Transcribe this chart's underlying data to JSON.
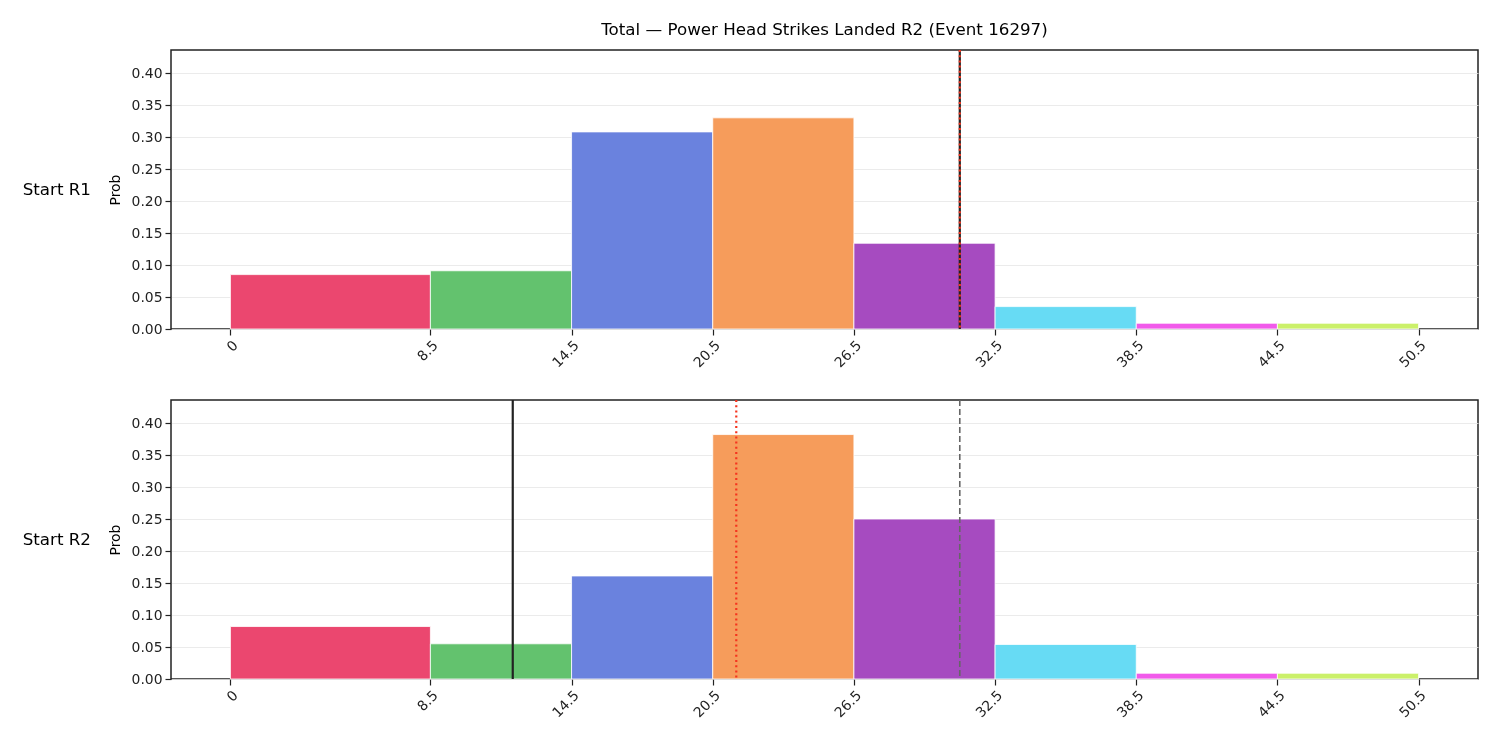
{
  "chart_data": [
    {
      "type": "histogram",
      "title": "Total — Power Head Strikes Landed R2 (Event 16297)",
      "ylabel": "Prob",
      "annotations": [
        "Start R1"
      ],
      "bins": [
        0,
        8.5,
        14.5,
        20.5,
        26.5,
        32.5,
        38.5,
        44.5,
        50.5
      ],
      "values": [
        0.085,
        0.091,
        0.308,
        0.33,
        0.134,
        0.035,
        0.009,
        0.009
      ],
      "colors": [
        "#eb476f",
        "#63c26e",
        "#6a82de",
        "#f69c5b",
        "#a64bc0",
        "#67dbf4",
        "#f15aea",
        "#cbf06a"
      ],
      "xlim": [
        -2.525,
        53.025
      ],
      "xticks": [
        0,
        8.5,
        14.5,
        20.5,
        26.5,
        32.5,
        38.5,
        44.5,
        50.5
      ],
      "ylim": [
        0,
        0.436
      ],
      "yticks": [
        {
          "value": 0,
          "label": "0.00"
        },
        0.05,
        {
          "value": 0.1,
          "label": "0.10"
        },
        0.15,
        {
          "value": 0.2,
          "label": "0.20"
        },
        0.25,
        {
          "value": 0.3,
          "label": "0.30"
        },
        0.35,
        {
          "value": 0.4,
          "label": "0.40"
        }
      ],
      "grid": "y",
      "ref_lines": [
        {
          "axis": "x",
          "value": 31,
          "color": "#222222",
          "line_style": "solid"
        },
        {
          "axis": "x",
          "value": 31,
          "color": "#f5341f",
          "line_style": "dotted"
        }
      ]
    },
    {
      "type": "histogram",
      "ylabel": "Prob",
      "annotations": [
        "Start R2"
      ],
      "bins": [
        0,
        8.5,
        14.5,
        20.5,
        26.5,
        32.5,
        38.5,
        44.5,
        50.5
      ],
      "values": [
        0.082,
        0.055,
        0.161,
        0.382,
        0.25,
        0.054,
        0.009,
        0.009
      ],
      "colors": [
        "#eb476f",
        "#63c26e",
        "#6a82de",
        "#f69c5b",
        "#a64bc0",
        "#67dbf4",
        "#f15aea",
        "#cbf06a"
      ],
      "xlim": [
        -2.525,
        53.025
      ],
      "xticks": [
        0,
        8.5,
        14.5,
        20.5,
        26.5,
        32.5,
        38.5,
        44.5,
        50.5
      ],
      "ylim": [
        0,
        0.436
      ],
      "yticks": [
        {
          "value": 0,
          "label": "0.00"
        },
        0.05,
        {
          "value": 0.1,
          "label": "0.10"
        },
        0.15,
        {
          "value": 0.2,
          "label": "0.20"
        },
        0.25,
        {
          "value": 0.3,
          "label": "0.30"
        },
        0.35,
        {
          "value": 0.4,
          "label": "0.40"
        }
      ],
      "grid": "y",
      "ref_lines": [
        {
          "axis": "x",
          "value": 12,
          "color": "#222222",
          "line_style": "solid"
        },
        {
          "axis": "x",
          "value": 21.5,
          "color": "#f5341f",
          "line_style": "dotted"
        },
        {
          "axis": "x",
          "value": 31,
          "color": "#666666",
          "line_style": "dashed"
        }
      ]
    }
  ]
}
